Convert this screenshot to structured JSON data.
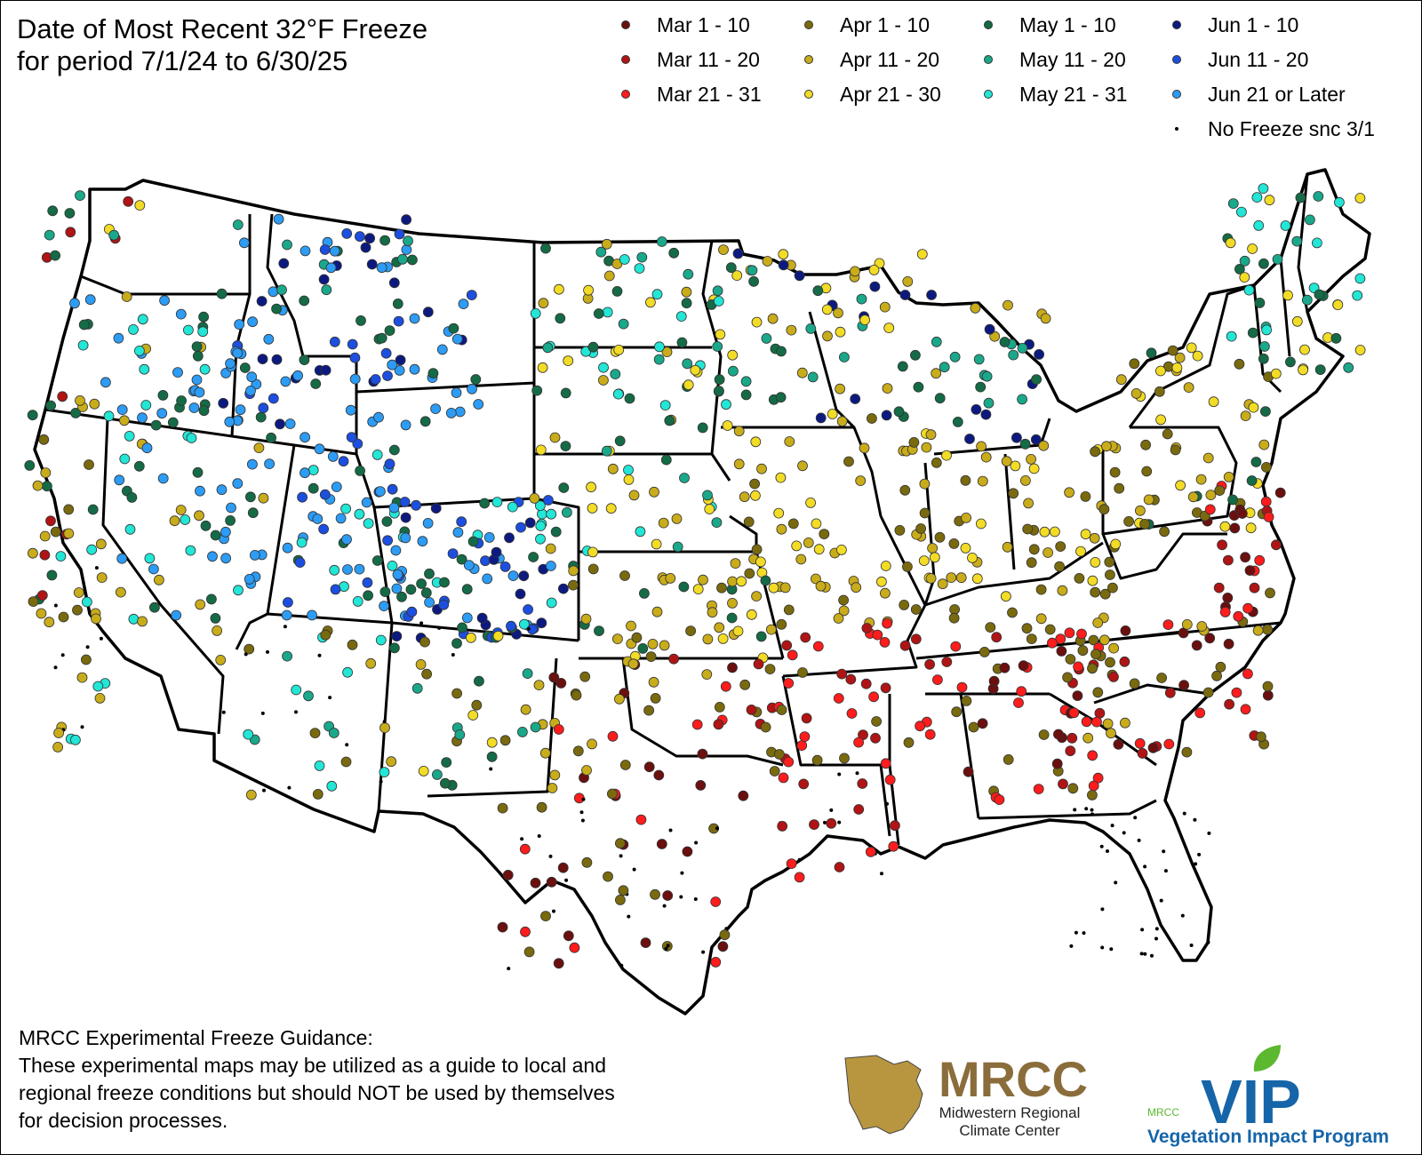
{
  "title": {
    "line1": "Date of Most Recent 32°F Freeze",
    "line2": "for period 7/1/24 to 6/30/25"
  },
  "legend": [
    {
      "label": "Mar 1 - 10",
      "color": "#6b0f0f"
    },
    {
      "label": "Mar 11 - 20",
      "color": "#b01414"
    },
    {
      "label": "Mar 21 - 31",
      "color": "#ff1c1c"
    },
    {
      "label": "Apr 1 - 10",
      "color": "#7a6a0e"
    },
    {
      "label": "Apr 11 - 20",
      "color": "#c9ac1a"
    },
    {
      "label": "Apr 21 - 30",
      "color": "#f2dc25"
    },
    {
      "label": "May 1 - 10",
      "color": "#146b46"
    },
    {
      "label": "May 11 - 20",
      "color": "#1aa88a"
    },
    {
      "label": "May 21 - 31",
      "color": "#22e6d6"
    },
    {
      "label": "Jun 1 - 10",
      "color": "#0c1a80"
    },
    {
      "label": "Jun 11 - 20",
      "color": "#1c4fe0"
    },
    {
      "label": "Jun 21 or Later",
      "color": "#2c9cf5"
    },
    {
      "label": "No Freeze snc 3/1",
      "color": "#000000"
    }
  ],
  "disclaimer": {
    "heading": "MRCC Experimental Freeze Guidance:",
    "line1": "These experimental maps may be utilized as a guide to local and",
    "line2": "regional freeze conditions but should NOT be used by themselves",
    "line3": "for decision processes."
  },
  "logos": {
    "mrcc_wordmark": "MRCC",
    "mrcc_sub1": "Midwestern Regional",
    "mrcc_sub2": "Climate Center",
    "mrcc_color": "#8a6d3b",
    "vip_small": "MRCC",
    "vip_wordmark": "VIP",
    "vip_sub": "Vegetation Impact Program",
    "vip_color": "#1565a8",
    "vip_leaf_color": "#5cb82e"
  }
}
